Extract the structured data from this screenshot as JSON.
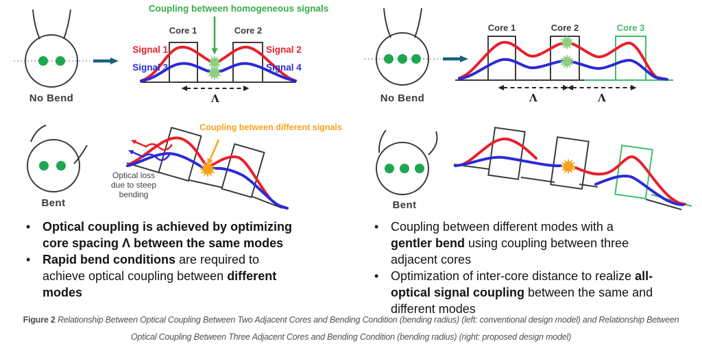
{
  "colors": {
    "red": "#e8202c",
    "blue": "#2b2bd5",
    "green": "#3aab4a",
    "light_green": "#8ccf7e",
    "core_green": "#3cbd6a",
    "dot_green": "#1ea751",
    "orange": "#f6a31c",
    "teal": "#19607e",
    "ink": "#3a3a3a",
    "caption_gray": "#4f4f4f",
    "text_black": "#141414"
  },
  "left_panel": {
    "no_bend": {
      "state_label": "No Bend",
      "coupling_label": "Coupling between homogeneous signals",
      "core1_label": "Core 1",
      "core2_label": "Core 2",
      "signal1_label": "Signal 1",
      "signal2_label": "Signal 2",
      "signal3_label": "Signal 3",
      "signal4_label": "Signal 4",
      "lambda_symbol": "Λ"
    },
    "bent": {
      "state_label": "Bent",
      "coupling_label": "Coupling between different signals",
      "loss_lines": [
        "Optical loss",
        "due to steep",
        "bending"
      ]
    },
    "bullets": [
      [
        {
          "t": "Optical coupling is achieved by optimizing\ncore spacing Λ between the same modes",
          "b": true
        }
      ],
      [
        {
          "t": "Rapid bend conditions",
          "b": true
        },
        {
          "t": " are required to\nachieve optical coupling between ",
          "b": false
        },
        {
          "t": "different\nmodes",
          "b": true
        }
      ]
    ]
  },
  "right_panel": {
    "no_bend": {
      "state_label": "No Bend",
      "core1_label": "Core 1",
      "core2_label": "Core 2",
      "core3_label": "Core 3",
      "lambda_symbol": "Λ"
    },
    "bent": {
      "state_label": "Bent"
    },
    "bullets": [
      [
        {
          "t": "Coupling between different modes with a\n",
          "b": false
        },
        {
          "t": "gentler bend",
          "b": true
        },
        {
          "t": " using coupling between three\nadjacent cores",
          "b": false
        }
      ],
      [
        {
          "t": "Optimization of inter-core distance to realize ",
          "b": false
        },
        {
          "t": "all-\noptical signal coupling",
          "b": true
        },
        {
          "t": " between the same and\ndifferent modes",
          "b": false
        }
      ]
    ]
  },
  "caption": {
    "label": "Figure 2",
    "text": "Relationship Between Optical Coupling Between Two Adjacent Cores and Bending Condition (bending radius) (left: conventional design model) and Relationship Between\nOptical Coupling Between Three Adjacent Cores and Bending Condition (bending radius) (right: proposed design model)"
  }
}
